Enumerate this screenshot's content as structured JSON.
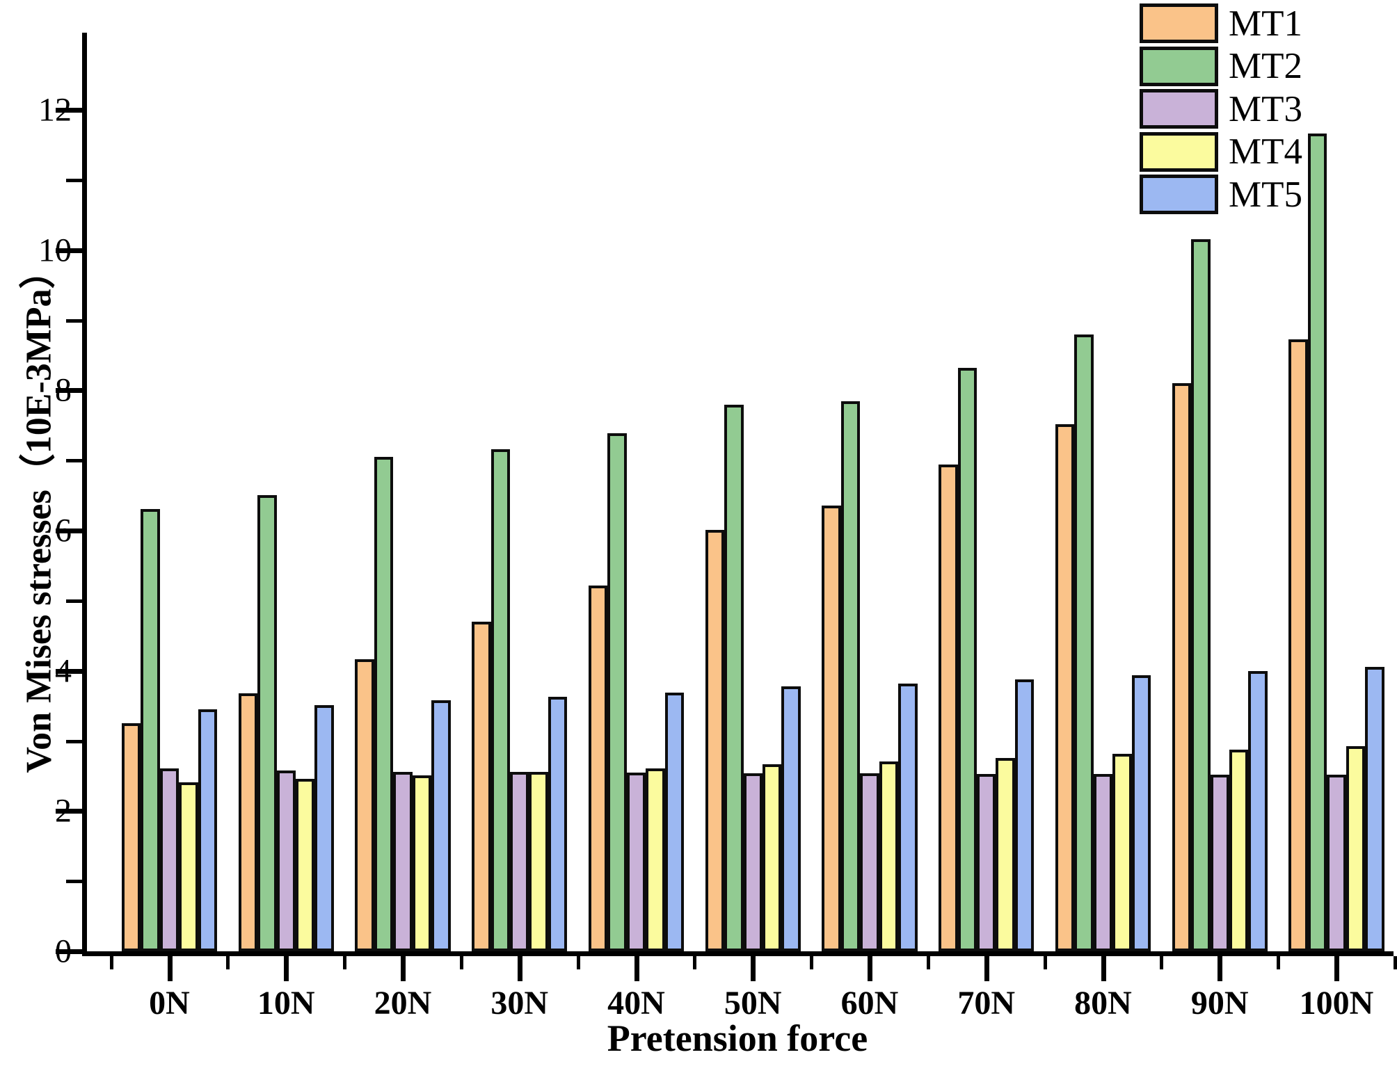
{
  "chart_data": {
    "type": "bar",
    "title": "",
    "xlabel": "Pretension force",
    "ylabel": "Von Mises stresses（10E-3MPa）",
    "categories": [
      "0N",
      "10N",
      "20N",
      "30N",
      "40N",
      "50N",
      "60N",
      "70N",
      "80N",
      "90N",
      "100N"
    ],
    "series": [
      {
        "name": "MT1",
        "color": "#FAC389",
        "values": [
          3.25,
          3.68,
          4.17,
          4.7,
          5.22,
          6.01,
          6.36,
          6.94,
          7.52,
          8.1,
          8.73
        ]
      },
      {
        "name": "MT2",
        "color": "#92CB92",
        "values": [
          6.31,
          6.51,
          7.05,
          7.16,
          7.39,
          7.8,
          7.84,
          8.32,
          8.8,
          10.16,
          11.66
        ]
      },
      {
        "name": "MT3",
        "color": "#C9B2D8",
        "values": [
          2.61,
          2.58,
          2.56,
          2.56,
          2.55,
          2.54,
          2.54,
          2.53,
          2.53,
          2.52,
          2.52
        ]
      },
      {
        "name": "MT4",
        "color": "#FBFB9E",
        "values": [
          2.41,
          2.46,
          2.51,
          2.56,
          2.61,
          2.67,
          2.71,
          2.76,
          2.82,
          2.88,
          2.93
        ]
      },
      {
        "name": "MT5",
        "color": "#9CB8F2",
        "values": [
          3.45,
          3.51,
          3.58,
          3.63,
          3.69,
          3.78,
          3.82,
          3.88,
          3.94,
          4.0,
          4.06
        ]
      }
    ],
    "ylim": [
      0,
      13
    ],
    "yticks_major": [
      0,
      2,
      4,
      6,
      8,
      10,
      12
    ],
    "yticks_minor": [
      1,
      3,
      5,
      7,
      9,
      11
    ],
    "grid": false,
    "legend_position": "top-right",
    "axis_color": "#000000"
  }
}
